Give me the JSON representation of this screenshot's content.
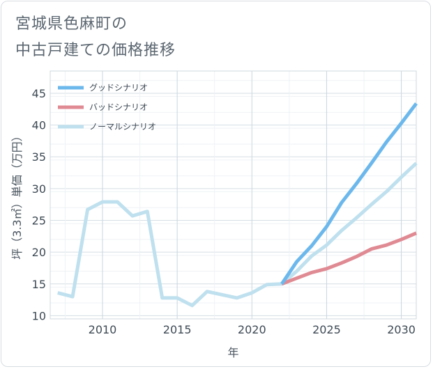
{
  "chart_data": {
    "type": "line",
    "title": "宮城県色麻町の\n中古戸建ての価格推移",
    "title_lines": [
      "宮城県色麻町の",
      "中古戸建ての価格推移"
    ],
    "xlabel": "年",
    "ylabel": "坪（3.3㎡）単価（万円）",
    "xlim": [
      2006.5,
      2031
    ],
    "ylim": [
      9.5,
      48.5
    ],
    "xticks": [
      2010,
      2015,
      2020,
      2025,
      2030
    ],
    "yticks": [
      10,
      15,
      20,
      25,
      30,
      35,
      40,
      45
    ],
    "grid": true,
    "legend_position": "top-left",
    "series": [
      {
        "name": "グッドシナリオ",
        "color": "#6cb8ec",
        "x": [
          2022,
          2023,
          2024,
          2025,
          2026,
          2027,
          2028,
          2029,
          2030,
          2031
        ],
        "values": [
          15.0,
          18.5,
          21.0,
          24.0,
          27.8,
          30.8,
          34.0,
          37.3,
          40.3,
          43.4
        ]
      },
      {
        "name": "バッドシナリオ",
        "color": "#e08a93",
        "x": [
          2022,
          2023,
          2024,
          2025,
          2026,
          2027,
          2028,
          2029,
          2030,
          2031
        ],
        "values": [
          15.0,
          15.9,
          16.8,
          17.4,
          18.3,
          19.3,
          20.5,
          21.1,
          22.0,
          23.0
        ]
      },
      {
        "name": "ノーマルシナリオ",
        "color": "#bfe0ee",
        "x": [
          2007,
          2008,
          2009,
          2010,
          2011,
          2012,
          2013,
          2014,
          2015,
          2016,
          2017,
          2018,
          2019,
          2020,
          2021,
          2022,
          2023,
          2024,
          2025,
          2026,
          2027,
          2028,
          2029,
          2030,
          2031
        ],
        "values": [
          13.6,
          13.0,
          26.7,
          27.9,
          27.9,
          25.7,
          26.4,
          12.8,
          12.8,
          11.6,
          13.8,
          13.3,
          12.8,
          13.6,
          14.9,
          15.0,
          17.0,
          19.4,
          21.1,
          23.4,
          25.4,
          27.5,
          29.5,
          31.8,
          34.0
        ]
      }
    ]
  }
}
